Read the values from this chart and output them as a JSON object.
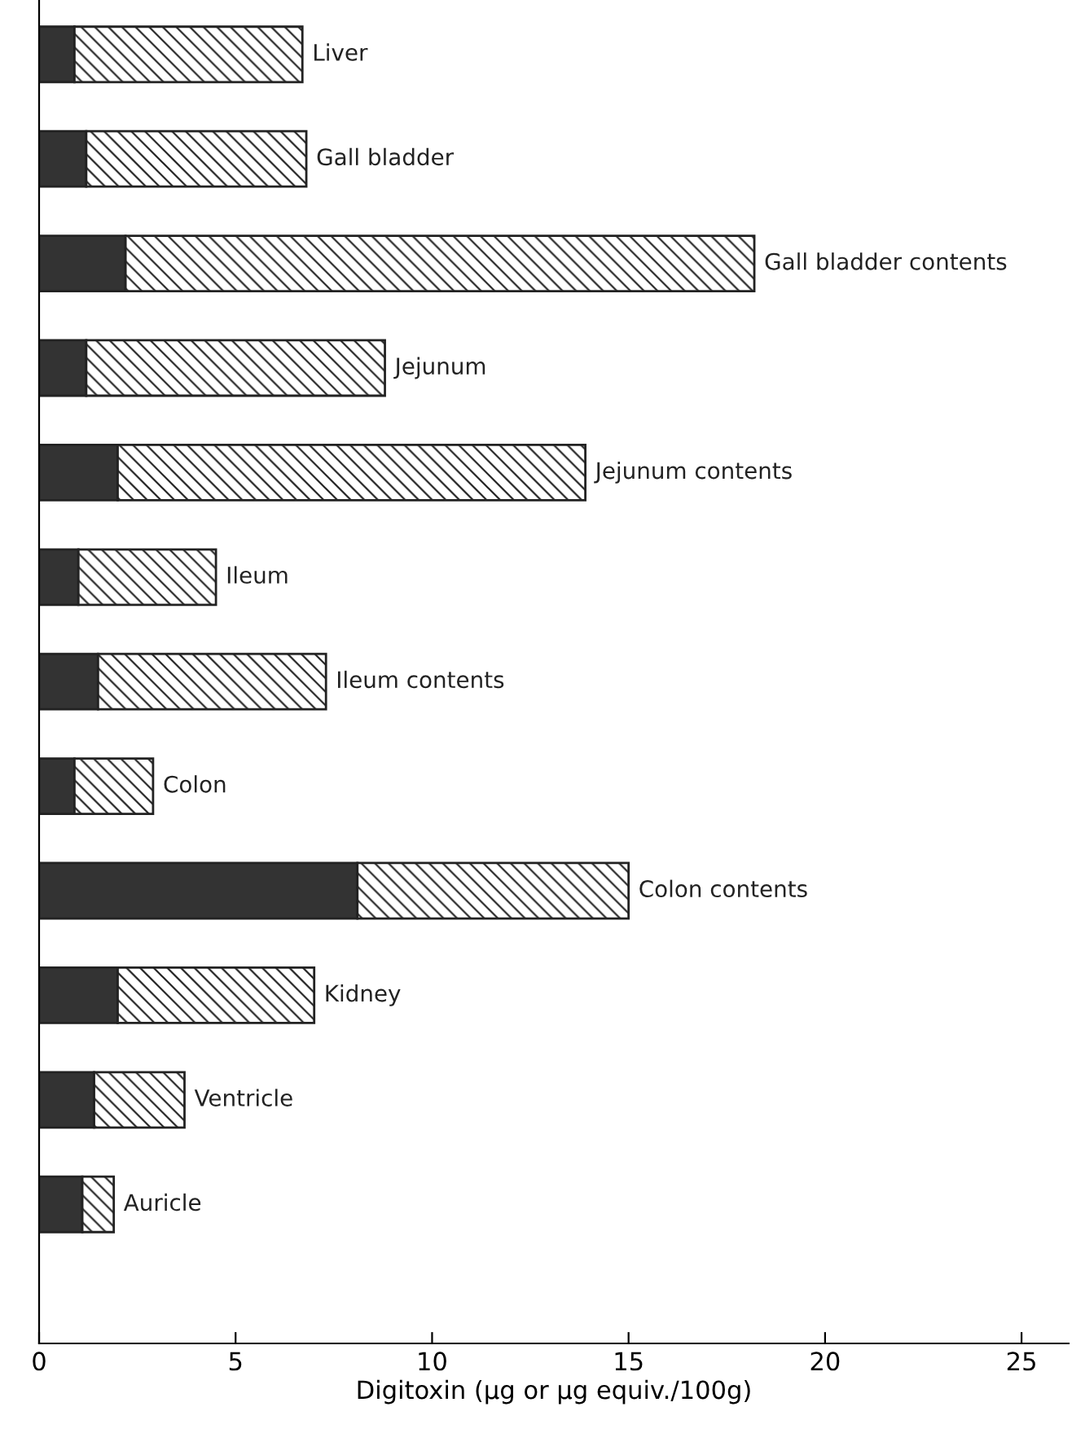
{
  "chart_data": {
    "type": "bar",
    "orientation": "horizontal",
    "stacked": true,
    "xlabel": "Digitoxin (µg or µg equiv./100g)",
    "categories": [
      "Liver",
      "Gall bladder",
      "Gall bladder contents",
      "Jejunum",
      "Jejunum contents",
      "Ileum",
      "Ileum contents",
      "Colon",
      "Colon contents",
      "Kidney",
      "Ventricle",
      "Auricle"
    ],
    "series": [
      {
        "color": "#333333",
        "values": [
          0.9,
          1.2,
          2.2,
          1.2,
          2.0,
          1.0,
          1.5,
          0.9,
          8.1,
          2.0,
          1.4,
          1.1
        ]
      },
      {
        "color": "#222222",
        "values": [
          5.8,
          5.6,
          16.0,
          7.6,
          11.9,
          3.5,
          5.8,
          2.0,
          6.9,
          5.0,
          2.3,
          0.8
        ]
      }
    ],
    "xlim": [
      0,
      26.2
    ],
    "xticks": [
      0,
      5,
      10,
      15,
      20,
      25
    ],
    "grid": false,
    "legend": false,
    "tick_labels": "x"
  }
}
